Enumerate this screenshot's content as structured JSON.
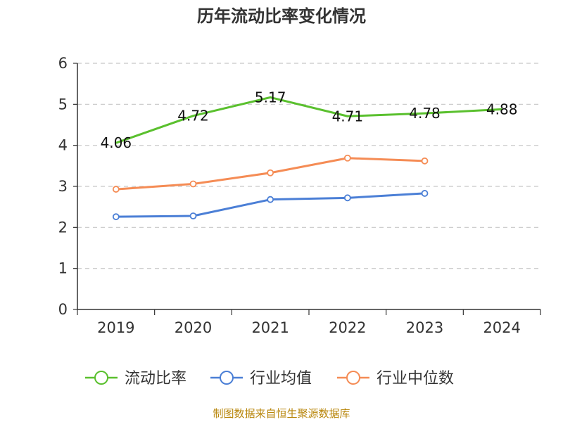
{
  "chart_data": {
    "type": "line",
    "title": "历年流动比率变化情况",
    "categories": [
      "2019",
      "2020",
      "2021",
      "2022",
      "2023",
      "2024"
    ],
    "y_ticks": [
      "0",
      "1",
      "2",
      "3",
      "4",
      "5",
      "6"
    ],
    "ylim": [
      0,
      6
    ],
    "grid": "horizontal dashed",
    "legend_position": "bottom-center",
    "series": [
      {
        "name": "流动比率",
        "color": "#5ac02e",
        "values": [
          4.06,
          4.72,
          5.17,
          4.71,
          4.78,
          4.88
        ],
        "labels": [
          "4.06",
          "4.72",
          "5.17",
          "4.71",
          "4.78",
          "4.88"
        ]
      },
      {
        "name": "行业均值",
        "color": "#4b7fd6",
        "values": [
          2.26,
          2.28,
          2.68,
          2.72,
          2.83,
          null
        ]
      },
      {
        "name": "行业中位数",
        "color": "#f58c55",
        "values": [
          2.93,
          3.06,
          3.33,
          3.69,
          3.62,
          null
        ]
      }
    ]
  },
  "footer": {
    "source": "制图数据来自恒生聚源数据库"
  }
}
